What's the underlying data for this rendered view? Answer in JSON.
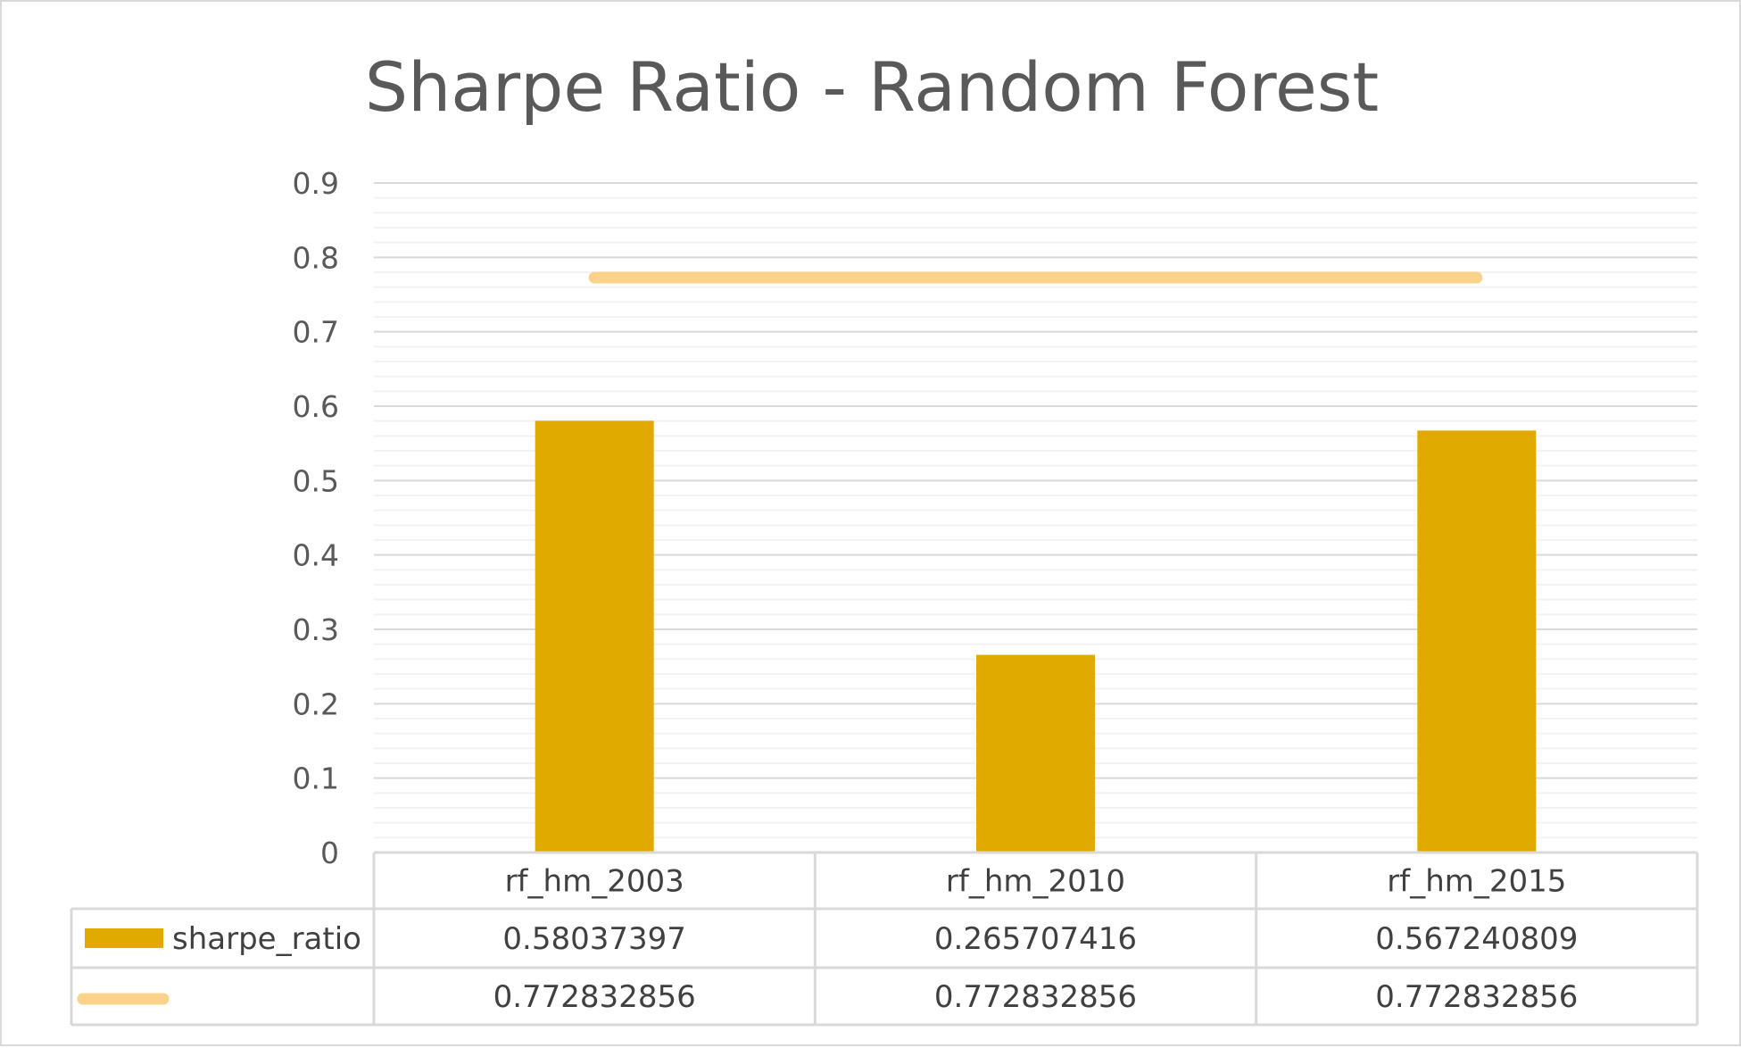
{
  "chart_data": {
    "type": "bar",
    "title": "Sharpe Ratio - Random Forest",
    "categories": [
      "rf_hm_2003",
      "rf_hm_2010",
      "rf_hm_2015"
    ],
    "series": [
      {
        "name": "sharpe_ratio",
        "type": "bar",
        "color": "#E0AA00",
        "values": [
          0.58037397,
          0.265707416,
          0.567240809
        ],
        "labels": [
          "0.58037397",
          "0.265707416",
          "0.567240809"
        ]
      },
      {
        "name": "",
        "type": "line",
        "color": "#FBD28A",
        "values": [
          0.772832856,
          0.772832856,
          0.772832856
        ],
        "labels": [
          "0.772832856",
          "0.772832856",
          "0.772832856"
        ]
      }
    ],
    "ylim": [
      0,
      0.9
    ],
    "yticks": [
      "0",
      "0.1",
      "0.2",
      "0.3",
      "0.4",
      "0.5",
      "0.6",
      "0.7",
      "0.8",
      "0.9"
    ],
    "xlabel": "",
    "ylabel": "",
    "grid": true,
    "minor_grid": true,
    "legend": "data-table"
  }
}
